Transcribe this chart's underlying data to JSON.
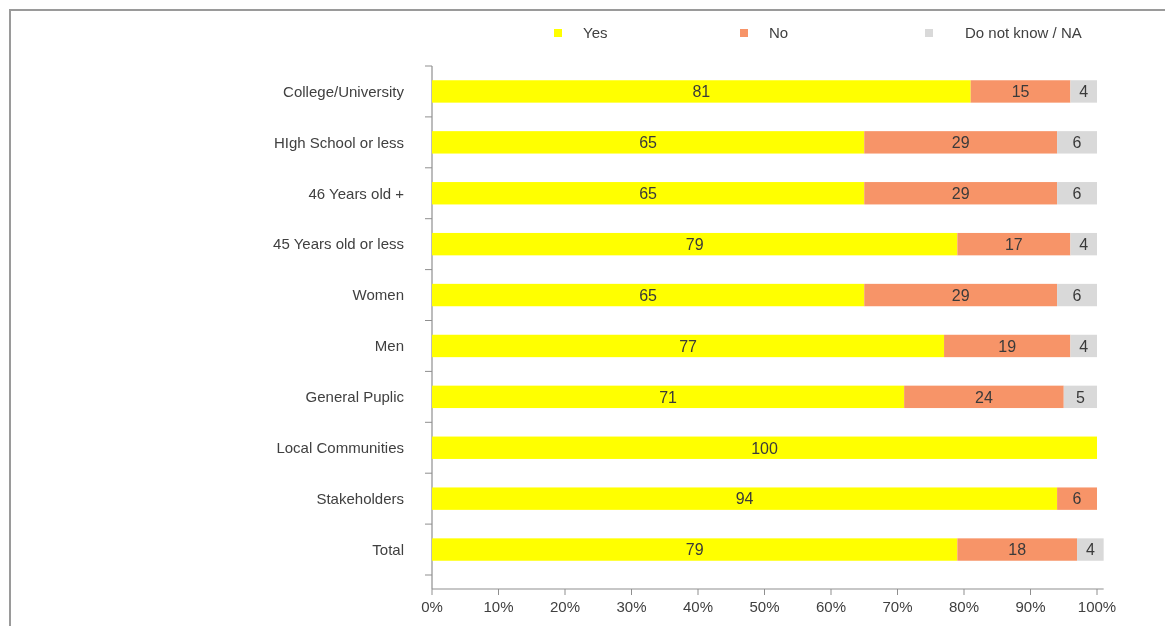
{
  "chart_data": {
    "type": "bar",
    "orientation": "horizontal",
    "stacked": true,
    "categories": [
      "College/University",
      "HIgh School or less",
      "46 Years old +",
      "45 Years old or less",
      "Women",
      "Men",
      "General Puplic",
      "Local Communities",
      "Stakeholders",
      "Total"
    ],
    "series": [
      {
        "name": "Yes",
        "color": "#ffff00",
        "values": [
          81,
          65,
          65,
          79,
          65,
          77,
          71,
          100,
          94,
          79
        ],
        "value_labels": [
          "81",
          "65",
          "65",
          "79",
          "65",
          "77",
          "71",
          "100",
          "94",
          "79"
        ]
      },
      {
        "name": "No",
        "color": "#f79468",
        "values": [
          15,
          29,
          29,
          17,
          29,
          19,
          24,
          null,
          6,
          18
        ],
        "value_labels": [
          "15",
          "29",
          "29",
          "17",
          "29",
          "19",
          "24",
          null,
          "6",
          "18"
        ]
      },
      {
        "name": "Do not know / NA",
        "color": "#d9d9d9",
        "values": [
          4,
          6,
          6,
          4,
          6,
          4,
          5,
          null,
          null,
          4
        ],
        "value_labels": [
          "4",
          "6",
          "6",
          "4",
          "6",
          "4",
          "5",
          null,
          null,
          "4"
        ]
      }
    ],
    "xlim": [
      0,
      101
    ],
    "xticks": [
      {
        "value": 0,
        "label": "0%"
      },
      {
        "value": 10,
        "label": "10%"
      },
      {
        "value": 20,
        "label": "20%"
      },
      {
        "value": 30,
        "label": "30%"
      },
      {
        "value": 40,
        "label": "40%"
      },
      {
        "value": 50,
        "label": "50%"
      },
      {
        "value": 60,
        "label": "60%"
      },
      {
        "value": 70,
        "label": "70%"
      },
      {
        "value": 80,
        "label": "80%"
      },
      {
        "value": 90,
        "label": "90%"
      },
      {
        "value": 100,
        "label": "100%"
      }
    ],
    "grid": false,
    "legend": "top"
  }
}
